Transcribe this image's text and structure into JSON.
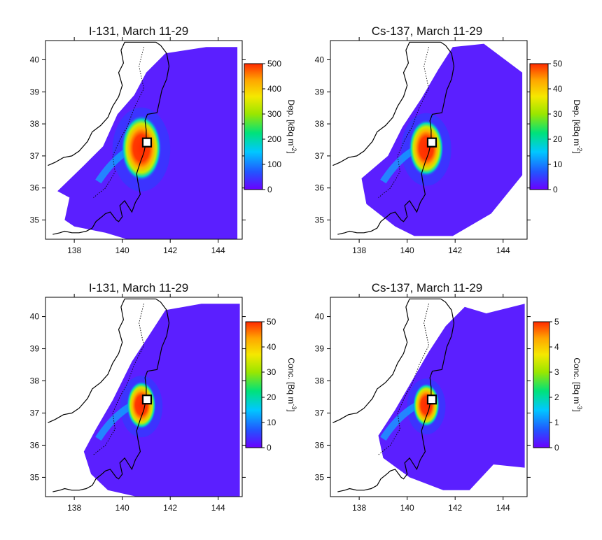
{
  "panels": [
    {
      "title": "I-131, March 11-29",
      "colorbar": {
        "label": "Dep. [kBq m",
        "unit_sup": "-2",
        "unit_close": "]",
        "ticks": [
          "0",
          "100",
          "200",
          "300",
          "400",
          "500"
        ],
        "max": 500
      },
      "field": "i131_dep"
    },
    {
      "title": "Cs-137, March 11-29",
      "colorbar": {
        "label": "Dep. [kBq m",
        "unit_sup": "-2",
        "unit_close": "]",
        "ticks": [
          "0",
          "10",
          "20",
          "30",
          "40",
          "50"
        ],
        "max": 50
      },
      "field": "cs137_dep"
    },
    {
      "title": "I-131, March 11-29",
      "colorbar": {
        "label": "Conc. [Bq m",
        "unit_sup": "-3",
        "unit_close": "]",
        "ticks": [
          "0",
          "10",
          "20",
          "30",
          "40",
          "50"
        ],
        "max": 50
      },
      "field": "i131_conc"
    },
    {
      "title": "Cs-137, March 11-29",
      "colorbar": {
        "label": "Conc. [Bq m",
        "unit_sup": "-3",
        "unit_close": "]",
        "ticks": [
          "0",
          "1",
          "2",
          "3",
          "4",
          "5"
        ],
        "max": 5
      },
      "field": "cs137_conc"
    }
  ],
  "axes": {
    "lon_ticks": [
      "138",
      "140",
      "142",
      "144"
    ],
    "lat_ticks": [
      "35",
      "36",
      "37",
      "38",
      "39",
      "40"
    ],
    "lon_range": [
      136.8,
      145
    ],
    "lat_range": [
      34.4,
      40.6
    ]
  },
  "source_marker": {
    "lon": 141.03,
    "lat": 37.42
  },
  "colormap": [
    "#6a00ff",
    "#2255ff",
    "#00c8ff",
    "#00e27a",
    "#9ae600",
    "#f5e800",
    "#ffa500",
    "#ff2a00"
  ]
}
